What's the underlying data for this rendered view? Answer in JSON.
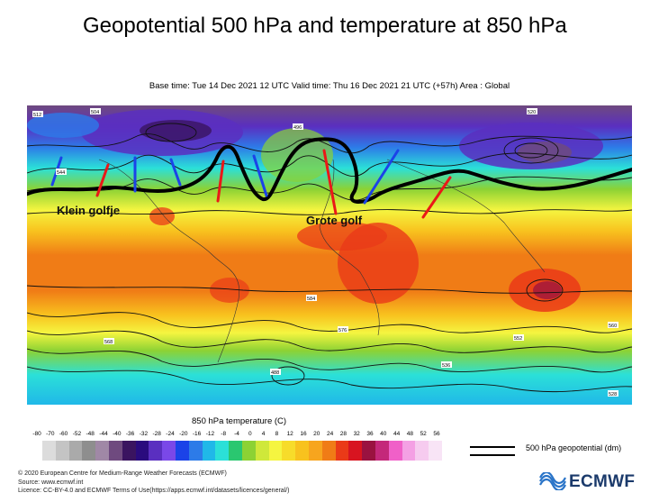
{
  "title": "Geopotential 500 hPa and temperature at 850 hPa",
  "subtitle": "Base time: Tue 14 Dec 2021 12 UTC Valid time: Thu 16 Dec 2021 21 UTC (+57h) Area : Global",
  "annotations": {
    "small_wave": "Klein golfje",
    "big_wave": "Grote golf"
  },
  "contour_labels": [
    "512",
    "504",
    "528",
    "520",
    "536",
    "544",
    "552",
    "560",
    "568",
    "576",
    "584",
    "496",
    "488"
  ],
  "legend": {
    "title": "850 hPa temperature (C)",
    "ticks": [
      "-80",
      "-70",
      "-60",
      "-52",
      "-48",
      "-44",
      "-40",
      "-36",
      "-32",
      "-28",
      "-24",
      "-20",
      "-16",
      "-12",
      "-8",
      "-4",
      "0",
      "4",
      "8",
      "12",
      "16",
      "20",
      "24",
      "28",
      "32",
      "36",
      "40",
      "44",
      "48",
      "52",
      "56"
    ],
    "colors": [
      "#dcdcdc",
      "#c4c4c4",
      "#aaaaaa",
      "#8e8e8e",
      "#a088a6",
      "#6f4a7f",
      "#3a1460",
      "#2a0b7e",
      "#5a2fc0",
      "#7a48e8",
      "#1b43e8",
      "#2d7be8",
      "#20b8e8",
      "#2be0d8",
      "#2ac770",
      "#8cd234",
      "#cfe83a",
      "#f5f540",
      "#f7dc2a",
      "#f8c21e",
      "#f7a51e",
      "#f07c16",
      "#ea3a18",
      "#d81420",
      "#9a1240",
      "#c4287a",
      "#f060c8",
      "#f4a0e4",
      "#f6cbef",
      "#f8e4f6"
    ],
    "geopotential_label": "500 hPa geopotential (dm)"
  },
  "footer": {
    "line1": "© 2020 European Centre for Medium-Range Weather Forecasts (ECMWF)",
    "line2": "Source: www.ecmwf.int",
    "line3": "Licence: CC-BY-4.0 and ECMWF Terms of Use(https://apps.ecmwf.int/datasets/licences/general/)"
  },
  "logo_text": "ECMWF"
}
